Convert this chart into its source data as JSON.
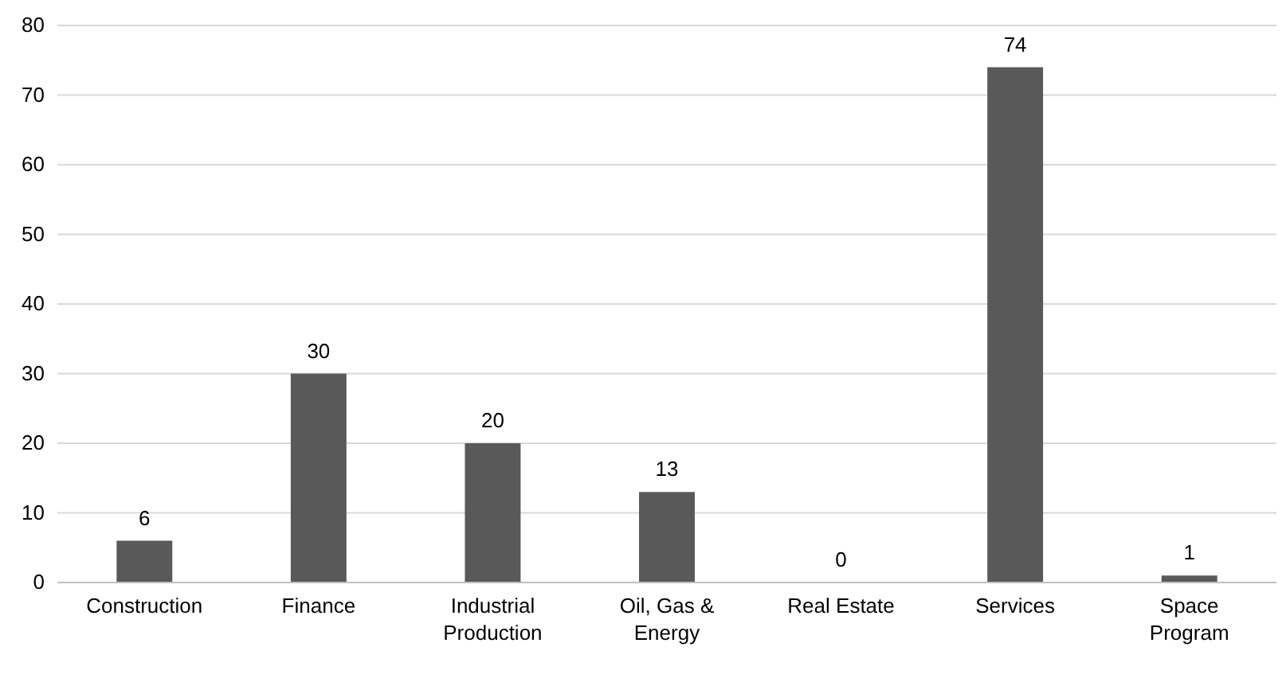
{
  "chart_data": {
    "type": "bar",
    "categories": [
      "Construction",
      "Finance",
      "Industrial Production",
      "Oil, Gas & Energy",
      "Real Estate",
      "Services",
      "Space Program"
    ],
    "values": [
      6,
      30,
      20,
      13,
      0,
      74,
      1
    ],
    "color": "#595959",
    "ylim": [
      0,
      80
    ],
    "yticks": [
      0,
      10,
      20,
      30,
      40,
      50,
      60,
      70,
      80
    ],
    "grid": "y",
    "data_labels": true
  }
}
